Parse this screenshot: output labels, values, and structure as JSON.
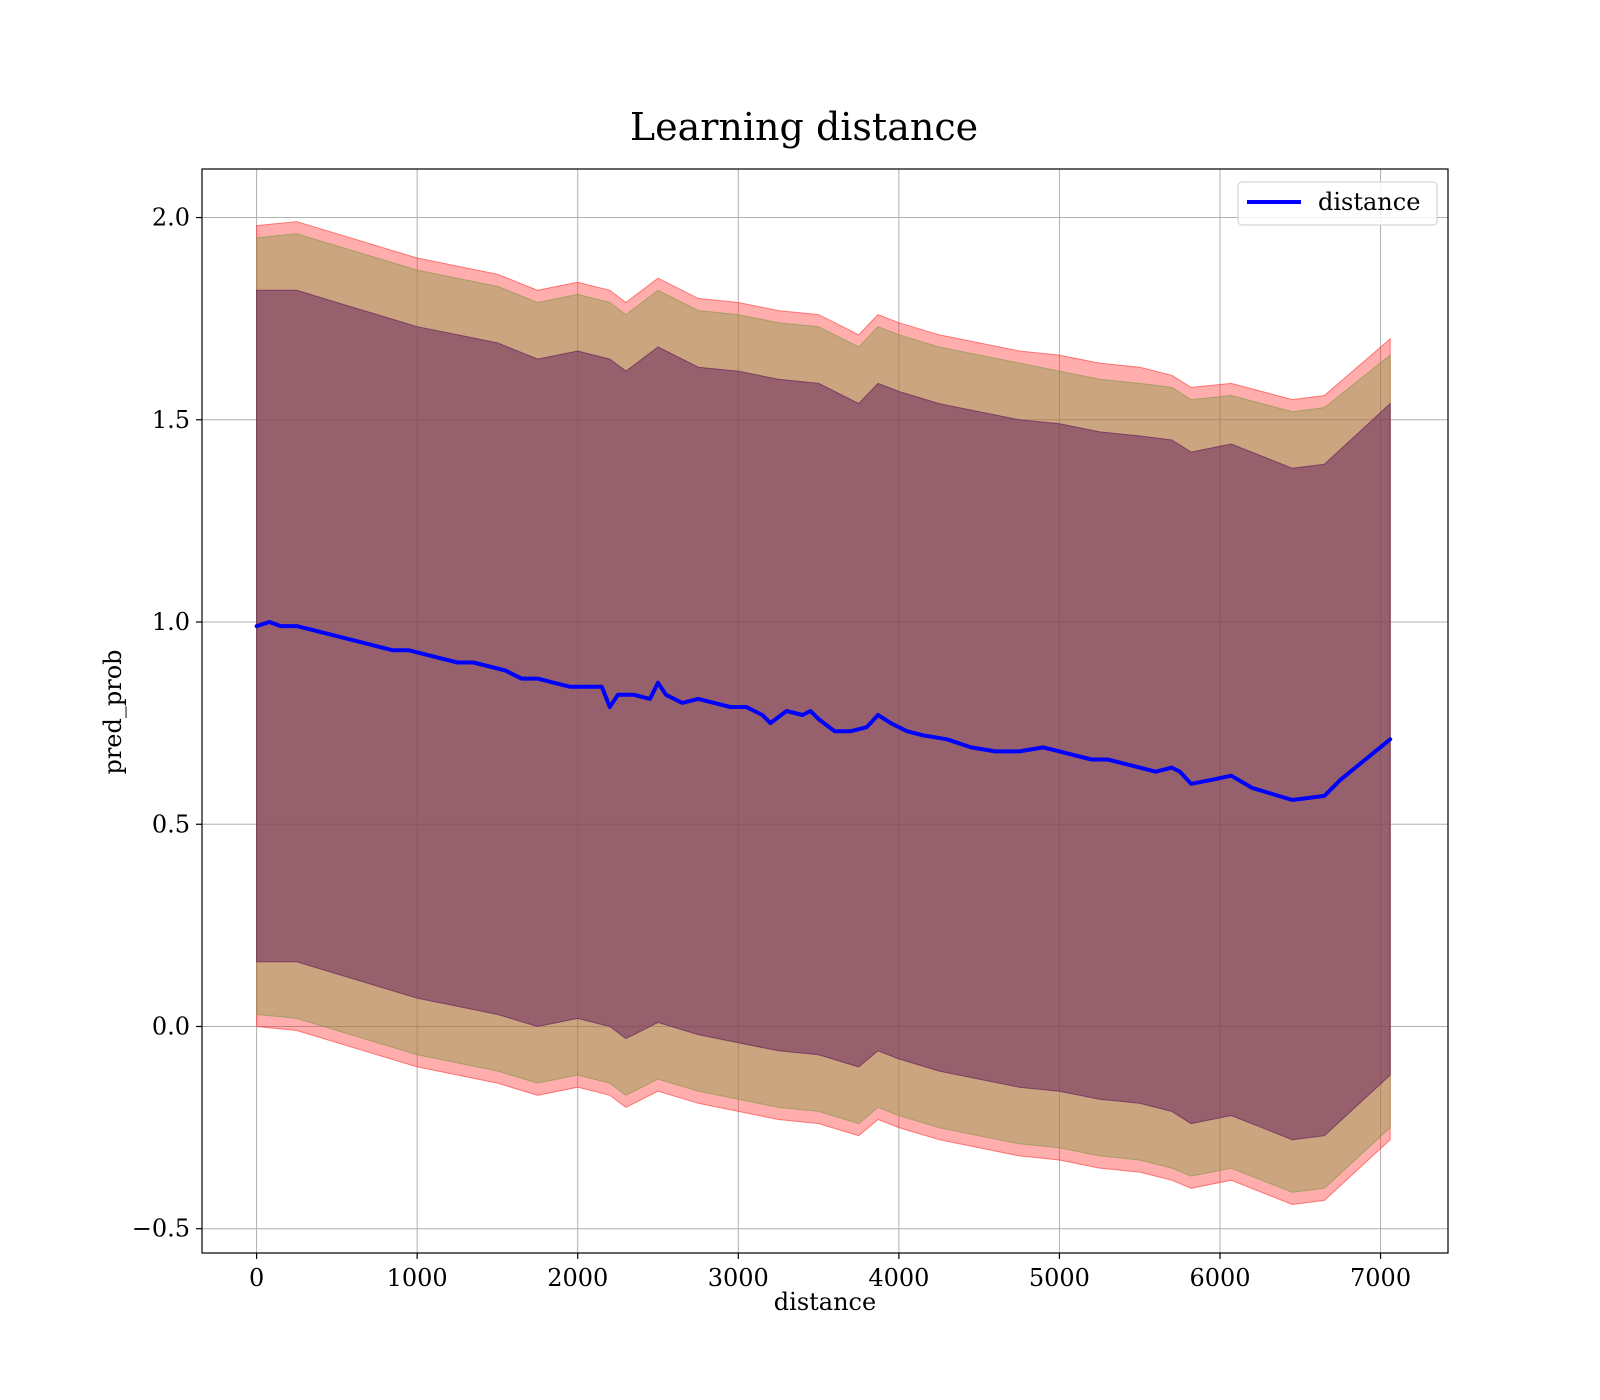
{
  "chart_data": {
    "type": "line",
    "title": "Learning distance",
    "xlabel": "distance",
    "ylabel": "pred_prob",
    "xlim": [
      -340,
      7420
    ],
    "ylim": [
      -0.56,
      2.12
    ],
    "xticks": [
      0,
      1000,
      2000,
      3000,
      4000,
      5000,
      6000,
      7000
    ],
    "yticks": [
      -0.5,
      0.0,
      0.5,
      1.0,
      1.5,
      2.0
    ],
    "xtick_labels": [
      "0",
      "1000",
      "2000",
      "3000",
      "4000",
      "5000",
      "6000",
      "7000"
    ],
    "ytick_labels": [
      "−0.5",
      "0.0",
      "0.5",
      "1.0",
      "1.5",
      "2.0"
    ],
    "grid": true,
    "legend_position": "top-right",
    "series": [
      {
        "name": "distance",
        "color": "#0000ff",
        "x": [
          0,
          80,
          150,
          250,
          350,
          450,
          550,
          650,
          750,
          850,
          950,
          1050,
          1150,
          1250,
          1350,
          1450,
          1550,
          1650,
          1750,
          1850,
          1950,
          2050,
          2150,
          2200,
          2250,
          2350,
          2450,
          2500,
          2550,
          2650,
          2750,
          2850,
          2950,
          3050,
          3150,
          3200,
          3300,
          3400,
          3450,
          3500,
          3600,
          3700,
          3800,
          3870,
          3950,
          4050,
          4150,
          4300,
          4450,
          4600,
          4750,
          4900,
          5000,
          5100,
          5200,
          5300,
          5400,
          5500,
          5600,
          5700,
          5750,
          5820,
          5950,
          6070,
          6200,
          6450,
          6650,
          6750,
          7060
        ],
        "y": [
          0.99,
          1.0,
          0.99,
          0.99,
          0.98,
          0.97,
          0.96,
          0.95,
          0.94,
          0.93,
          0.93,
          0.92,
          0.91,
          0.9,
          0.9,
          0.89,
          0.88,
          0.86,
          0.86,
          0.85,
          0.84,
          0.84,
          0.84,
          0.79,
          0.82,
          0.82,
          0.81,
          0.85,
          0.82,
          0.8,
          0.81,
          0.8,
          0.79,
          0.79,
          0.77,
          0.75,
          0.78,
          0.77,
          0.78,
          0.76,
          0.73,
          0.73,
          0.74,
          0.77,
          0.75,
          0.73,
          0.72,
          0.71,
          0.69,
          0.68,
          0.68,
          0.69,
          0.68,
          0.67,
          0.66,
          0.66,
          0.65,
          0.64,
          0.63,
          0.64,
          0.63,
          0.6,
          0.61,
          0.62,
          0.59,
          0.56,
          0.57,
          0.61,
          0.71
        ]
      }
    ],
    "bands": [
      {
        "color": "#ff3333",
        "opacity": 0.4,
        "x": [
          0,
          250,
          500,
          750,
          1000,
          1250,
          1500,
          1750,
          2000,
          2200,
          2300,
          2500,
          2750,
          3000,
          3250,
          3500,
          3750,
          3870,
          4000,
          4250,
          4500,
          4750,
          5000,
          5250,
          5500,
          5700,
          5820,
          6070,
          6450,
          6650,
          7060
        ],
        "upper": [
          1.98,
          1.99,
          1.96,
          1.93,
          1.9,
          1.88,
          1.86,
          1.82,
          1.84,
          1.82,
          1.79,
          1.85,
          1.8,
          1.79,
          1.77,
          1.76,
          1.71,
          1.76,
          1.74,
          1.71,
          1.69,
          1.67,
          1.66,
          1.64,
          1.63,
          1.61,
          1.58,
          1.59,
          1.55,
          1.56,
          1.7
        ],
        "lower": [
          0.0,
          -0.01,
          -0.04,
          -0.07,
          -0.1,
          -0.12,
          -0.14,
          -0.17,
          -0.15,
          -0.17,
          -0.2,
          -0.16,
          -0.19,
          -0.21,
          -0.23,
          -0.24,
          -0.27,
          -0.23,
          -0.25,
          -0.28,
          -0.3,
          -0.32,
          -0.33,
          -0.35,
          -0.36,
          -0.38,
          -0.4,
          -0.38,
          -0.44,
          -0.43,
          -0.28
        ]
      },
      {
        "color": "#8b9a4a",
        "opacity": 0.45,
        "x": [
          0,
          250,
          500,
          750,
          1000,
          1250,
          1500,
          1750,
          2000,
          2200,
          2300,
          2500,
          2750,
          3000,
          3250,
          3500,
          3750,
          3870,
          4000,
          4250,
          4500,
          4750,
          5000,
          5250,
          5500,
          5700,
          5820,
          6070,
          6450,
          6650,
          7060
        ],
        "upper": [
          1.95,
          1.96,
          1.93,
          1.9,
          1.87,
          1.85,
          1.83,
          1.79,
          1.81,
          1.79,
          1.76,
          1.82,
          1.77,
          1.76,
          1.74,
          1.73,
          1.68,
          1.73,
          1.71,
          1.68,
          1.66,
          1.64,
          1.62,
          1.6,
          1.59,
          1.58,
          1.55,
          1.56,
          1.52,
          1.53,
          1.66
        ],
        "lower": [
          0.03,
          0.02,
          -0.01,
          -0.04,
          -0.07,
          -0.09,
          -0.11,
          -0.14,
          -0.12,
          -0.14,
          -0.17,
          -0.13,
          -0.16,
          -0.18,
          -0.2,
          -0.21,
          -0.24,
          -0.2,
          -0.22,
          -0.25,
          -0.27,
          -0.29,
          -0.3,
          -0.32,
          -0.33,
          -0.35,
          -0.37,
          -0.35,
          -0.41,
          -0.4,
          -0.25
        ]
      },
      {
        "color": "#6b2a5c",
        "opacity": 0.55,
        "x": [
          0,
          250,
          500,
          750,
          1000,
          1250,
          1500,
          1750,
          2000,
          2200,
          2300,
          2500,
          2750,
          3000,
          3250,
          3500,
          3750,
          3870,
          4000,
          4250,
          4500,
          4750,
          5000,
          5250,
          5500,
          5700,
          5820,
          6070,
          6450,
          6650,
          7060
        ],
        "upper": [
          1.82,
          1.82,
          1.79,
          1.76,
          1.73,
          1.71,
          1.69,
          1.65,
          1.67,
          1.65,
          1.62,
          1.68,
          1.63,
          1.62,
          1.6,
          1.59,
          1.54,
          1.59,
          1.57,
          1.54,
          1.52,
          1.5,
          1.49,
          1.47,
          1.46,
          1.45,
          1.42,
          1.44,
          1.38,
          1.39,
          1.54
        ],
        "lower": [
          0.16,
          0.16,
          0.13,
          0.1,
          0.07,
          0.05,
          0.03,
          0.0,
          0.02,
          0.0,
          -0.03,
          0.01,
          -0.02,
          -0.04,
          -0.06,
          -0.07,
          -0.1,
          -0.06,
          -0.08,
          -0.11,
          -0.13,
          -0.15,
          -0.16,
          -0.18,
          -0.19,
          -0.21,
          -0.24,
          -0.22,
          -0.28,
          -0.27,
          -0.12
        ]
      }
    ]
  }
}
